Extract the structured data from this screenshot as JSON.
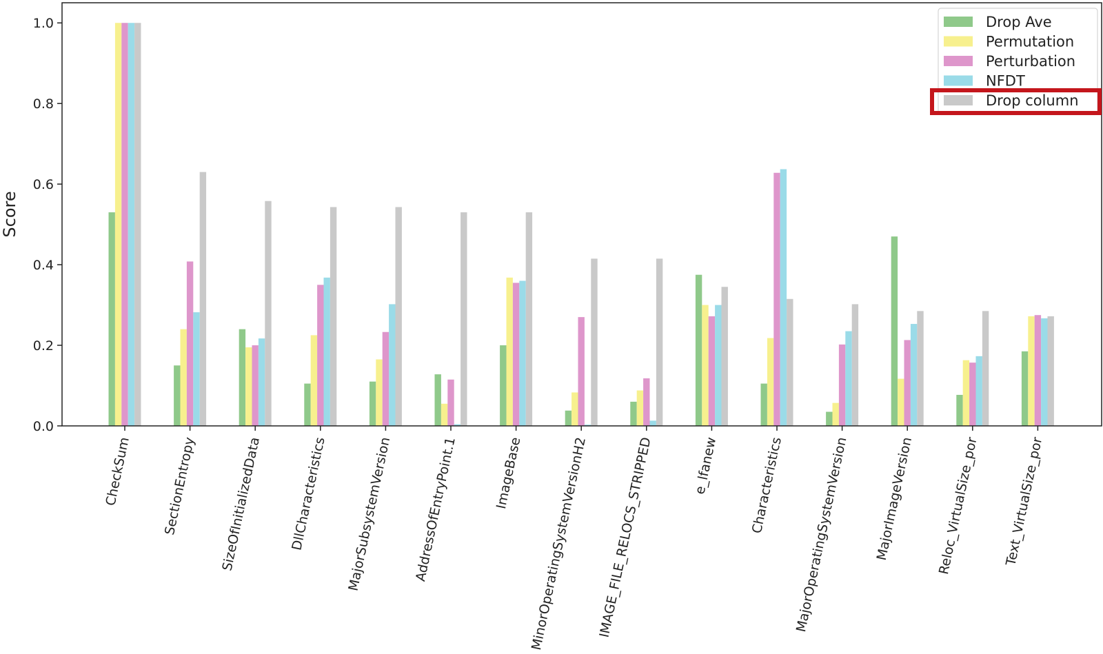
{
  "chart_data": {
    "type": "bar",
    "title": "",
    "xlabel": "",
    "ylabel": "Score",
    "ylim": [
      0,
      1.05
    ],
    "yticks": [
      "0.0",
      "0.2",
      "0.4",
      "0.6",
      "0.8",
      "1.0"
    ],
    "grid": false,
    "legend_position": "top-right",
    "categories": [
      "CheckSum",
      "SectionEntropy",
      "SizeOfInitializedData",
      "DllCharacteristics",
      "MajorSubsystemVersion",
      "AddressOfEntryPoint.1",
      "ImageBase",
      "MinorOperatingSystemVersionH2",
      "IMAGE_FILE_RELOCS_STRIPPED",
      "e_lfanew",
      "Characteristics",
      "MajorOperatingSystemVersion",
      "MajorImageVersion",
      "Reloc_VirtualSize_por",
      "Text_VirtualSize_por"
    ],
    "series": [
      {
        "name": "Drop Ave",
        "color": "#8fc98a",
        "values": [
          0.53,
          0.15,
          0.24,
          0.105,
          0.11,
          0.128,
          0.2,
          0.038,
          0.06,
          0.375,
          0.105,
          0.035,
          0.47,
          0.077,
          0.185
        ]
      },
      {
        "name": "Permutation",
        "color": "#f7f08e",
        "values": [
          1.0,
          0.24,
          0.195,
          0.225,
          0.165,
          0.055,
          0.368,
          0.083,
          0.088,
          0.3,
          0.218,
          0.057,
          0.117,
          0.163,
          0.272
        ]
      },
      {
        "name": "Perturbation",
        "color": "#de96cb",
        "values": [
          1.0,
          0.408,
          0.2,
          0.35,
          0.233,
          0.115,
          0.355,
          0.27,
          0.118,
          0.272,
          0.628,
          0.202,
          0.213,
          0.157,
          0.275
        ]
      },
      {
        "name": "NFDT",
        "color": "#9adbe8",
        "values": [
          1.0,
          0.282,
          0.217,
          0.368,
          0.302,
          0.004,
          0.36,
          0.003,
          0.013,
          0.3,
          0.637,
          0.235,
          0.253,
          0.173,
          0.267
        ]
      },
      {
        "name": "Drop column",
        "color": "#c9c9c9",
        "values": [
          1.0,
          0.63,
          0.558,
          0.543,
          0.543,
          0.53,
          0.53,
          0.415,
          0.415,
          0.345,
          0.315,
          0.302,
          0.285,
          0.285,
          0.272
        ]
      }
    ],
    "highlight_color": "#c4161c"
  }
}
